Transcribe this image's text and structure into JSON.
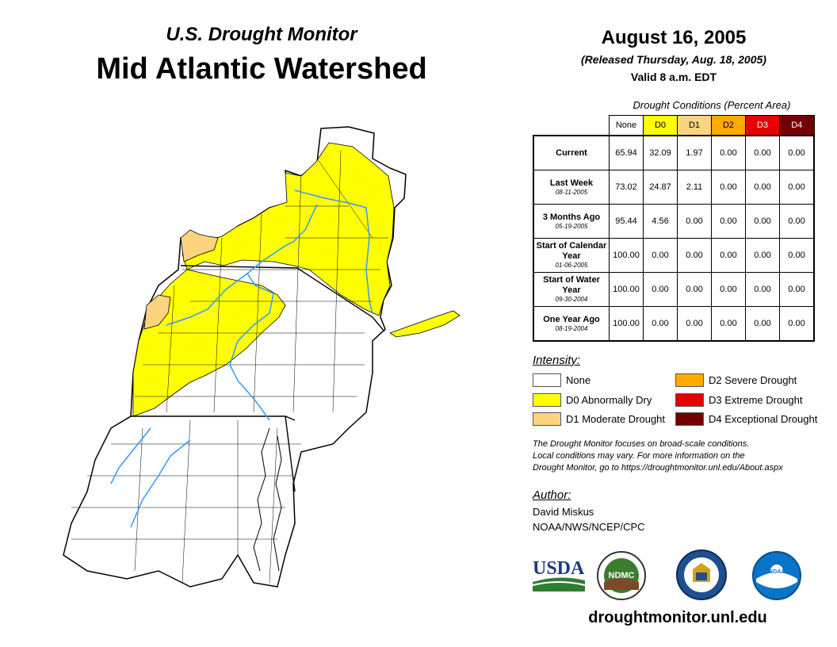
{
  "header": {
    "subtitle": "U.S. Drought Monitor",
    "title": "Mid Atlantic Watershed",
    "date": "August 16, 2005",
    "released": "(Released Thursday, Aug. 18, 2005)",
    "valid": "Valid 8 a.m. EDT"
  },
  "table": {
    "caption": "Drought Conditions (Percent Area)",
    "columns": [
      "None",
      "D0",
      "D1",
      "D2",
      "D3",
      "D4"
    ],
    "column_colors": [
      "#ffffff",
      "#ffff00",
      "#fcd37f",
      "#ffaa00",
      "#e60000",
      "#730000"
    ],
    "column_text_colors": [
      "#000000",
      "#000000",
      "#000000",
      "#000000",
      "#ffffff",
      "#ffffff"
    ],
    "rows": [
      {
        "label": "Current",
        "sublabel": "",
        "values": [
          "65.94",
          "32.09",
          "1.97",
          "0.00",
          "0.00",
          "0.00"
        ]
      },
      {
        "label": "Last Week",
        "sublabel": "08-11-2005",
        "values": [
          "73.02",
          "24.87",
          "2.11",
          "0.00",
          "0.00",
          "0.00"
        ]
      },
      {
        "label": "3 Months Ago",
        "sublabel": "05-19-2005",
        "values": [
          "95.44",
          "4.56",
          "0.00",
          "0.00",
          "0.00",
          "0.00"
        ]
      },
      {
        "label": "Start of Calendar Year",
        "sublabel": "01-06-2005",
        "values": [
          "100.00",
          "0.00",
          "0.00",
          "0.00",
          "0.00",
          "0.00"
        ]
      },
      {
        "label": "Start of Water Year",
        "sublabel": "09-30-2004",
        "values": [
          "100.00",
          "0.00",
          "0.00",
          "0.00",
          "0.00",
          "0.00"
        ]
      },
      {
        "label": "One Year Ago",
        "sublabel": "08-19-2004",
        "values": [
          "100.00",
          "0.00",
          "0.00",
          "0.00",
          "0.00",
          "0.00"
        ]
      }
    ]
  },
  "legend": {
    "title": "Intensity:",
    "items": [
      {
        "label": "None",
        "color": "#ffffff"
      },
      {
        "label": "D0 Abnormally Dry",
        "color": "#ffff00"
      },
      {
        "label": "D1 Moderate Drought",
        "color": "#fcd37f"
      },
      {
        "label": "D2 Severe Drought",
        "color": "#ffaa00"
      },
      {
        "label": "D3 Extreme Drought",
        "color": "#e60000"
      },
      {
        "label": "D4 Exceptional Drought",
        "color": "#730000"
      }
    ]
  },
  "note": {
    "line1": "The Drought Monitor focuses on broad-scale conditions.",
    "line2": "Local conditions may vary. For more information on the",
    "line3": "Drought Monitor, go to https://droughtmonitor.unl.edu/About.aspx"
  },
  "author": {
    "label": "Author:",
    "name": "David Miskus",
    "org": "NOAA/NWS/NCEP/CPC"
  },
  "logos": {
    "usda": "USDA",
    "ndmc": "NDMC",
    "noaa": "NOAA"
  },
  "site": "droughtmonitor.unl.edu",
  "map": {
    "region": "Mid Atlantic Watershed",
    "colors": {
      "none": "#ffffff",
      "d0": "#ffff00",
      "d1": "#fcd37f",
      "river": "#3399ff",
      "border": "#000000"
    }
  }
}
